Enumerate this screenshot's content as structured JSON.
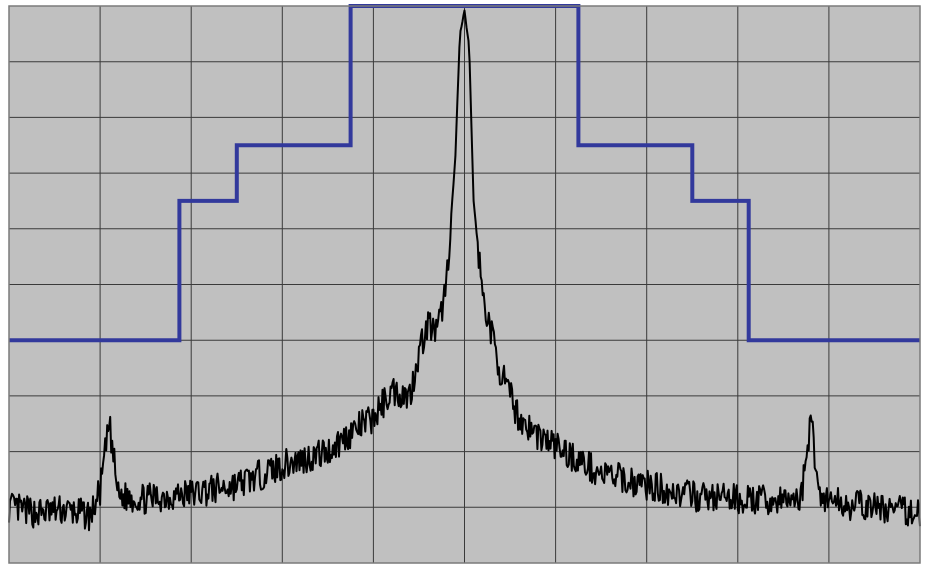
{
  "chart_data": {
    "type": "line",
    "title": "",
    "xlabel": "",
    "ylabel": "",
    "xlim": [
      0,
      10
    ],
    "ylim": [
      0,
      10
    ],
    "grid": true,
    "legend": "none",
    "colors": {
      "background": "#c0c0c0",
      "grid": "#3a3a3a",
      "border": "#7a7a7a",
      "mask": "#32399c",
      "trace": "#000000"
    },
    "series": [
      {
        "kind": "step-mask",
        "x": [
          0,
          1.87,
          1.87,
          2.5,
          2.5,
          3.75,
          3.75,
          6.25,
          6.25,
          7.5,
          7.5,
          8.12,
          8.12,
          10
        ],
        "y": [
          4,
          4,
          6.5,
          6.5,
          7.5,
          7.5,
          10,
          10,
          7.5,
          7.5,
          6.5,
          6.5,
          4,
          4
        ]
      },
      {
        "kind": "spectrum-trace",
        "x": [
          0,
          0.3,
          0.6,
          0.9,
          1.0,
          1.1,
          1.2,
          1.5,
          2.0,
          2.5,
          3.0,
          3.5,
          3.8,
          4.0,
          4.2,
          4.4,
          4.5,
          4.6,
          4.7,
          4.8,
          4.9,
          4.95,
          5.0,
          5.05,
          5.1,
          5.2,
          5.3,
          5.4,
          5.5,
          5.6,
          5.8,
          6.0,
          6.2,
          6.5,
          7.0,
          7.5,
          8.0,
          8.5,
          8.7,
          8.8,
          8.9,
          9.2,
          9.5,
          10
        ],
        "y": [
          1.0,
          0.9,
          0.95,
          0.85,
          1.3,
          2.5,
          1.2,
          1.15,
          1.25,
          1.4,
          1.75,
          2.0,
          2.4,
          2.6,
          3.1,
          3.0,
          3.8,
          4.3,
          4.1,
          5.0,
          7.3,
          9.5,
          9.9,
          9.3,
          6.5,
          4.8,
          4.1,
          3.4,
          3.0,
          2.6,
          2.3,
          2.1,
          1.9,
          1.6,
          1.4,
          1.2,
          1.15,
          1.1,
          1.2,
          2.6,
          1.2,
          1.05,
          1.0,
          0.9
        ]
      }
    ]
  }
}
